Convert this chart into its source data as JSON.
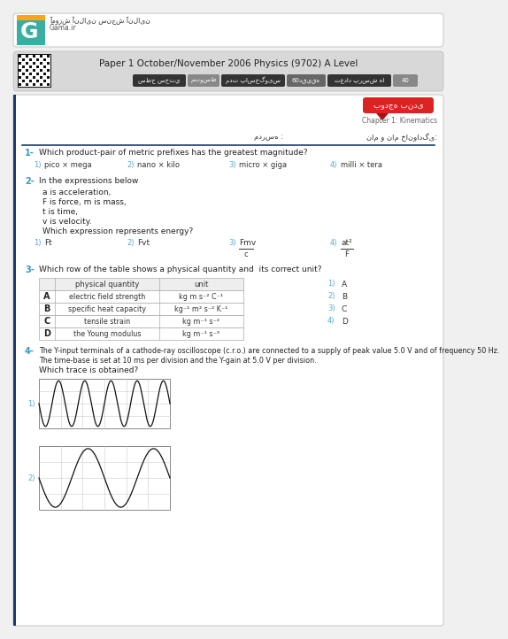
{
  "title": "Paper 1 October/November 2006 Physics (9702) A Level",
  "bg_color": "#f0f0f0",
  "white": "#ffffff",
  "header_gray": "#d8d8d8",
  "dark_blue": "#1a3a6b",
  "q_num_color": "#3399cc",
  "ans_color": "#55aadd",
  "tag_dark": "#333333",
  "tag_mid": "#555555",
  "red_tag": "#dd2222",
  "red_dark": "#aa1111",
  "persian_label1": "نام و نام خانوادگی:",
  "persian_label2": "مدرسه :",
  "chapter_label": "Chapter 1: Kinematics",
  "topic_label": "بودجه بندی",
  "logo_persian": "آموزش آنلاین سنجش آنلاین",
  "logo_site": "Gama.ir",
  "tag_items": [
    [
      "تعداد پرسش ها",
      "40"
    ],
    [
      "مدت پاسخگویس",
      "60دقيقه"
    ],
    [
      "سطح سختي",
      "متوسط"
    ]
  ],
  "q1_text": "Which product-pair of metric prefixes has the greatest magnitude?",
  "q1_opts": [
    "pico × mega",
    "nano × kilo",
    "micro × giga",
    "milli × tera"
  ],
  "q2_text": "In the expressions below",
  "q2_lines": [
    "a is acceleration,",
    "F is force, m is mass,",
    "t is time,",
    "v is velocity."
  ],
  "q2_sub": "Which expression represents energy?",
  "q2_opts": [
    "Ft",
    "Fvt",
    "Fmv\nt",
    "at²\nF"
  ],
  "q3_text": "Which row of the table shows a physical quantity and  its correct unit?",
  "tbl_hdr": [
    "physical quantity",
    "unit"
  ],
  "tbl_rows": [
    [
      "A",
      "electric field strength",
      "kg m s⁻² C⁻¹"
    ],
    [
      "B",
      "specific heat capacity",
      "kg⁻¹ m² s⁻² K⁻¹"
    ],
    [
      "C",
      "tensile strain",
      "kg m⁻¹ s⁻²"
    ],
    [
      "D",
      "the Young modulus",
      "kg m⁻¹ s⁻³"
    ]
  ],
  "q3_ans": [
    "A",
    "B",
    "C",
    "D"
  ],
  "q4_text": "The Y-input terminals of a cathode-ray oscilloscope (c.r.o.) are connected to a supply of peak value 5.0 V and of frequency 50 Hz.",
  "q4_line2": "The time-base is set at 10 ms per division and the Y-gain at 5.0 V per division.",
  "q4_sub": "Which trace is obtained?"
}
